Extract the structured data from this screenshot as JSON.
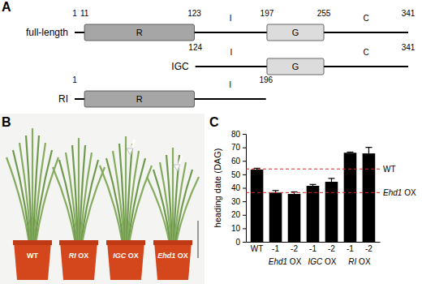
{
  "diagram": {
    "label": "A",
    "constructs": [
      {
        "name": "full-length",
        "start": 1,
        "end": 341,
        "ticks": [
          1,
          11,
          123,
          197,
          255,
          341
        ],
        "regions": [
          {
            "name": "R",
            "start": 11,
            "end": 123
          },
          {
            "name": "I"
          },
          {
            "name": "G",
            "start": 197,
            "end": 255
          },
          {
            "name": "C"
          }
        ]
      },
      {
        "name": "IGC",
        "start": 124,
        "end": 341,
        "ticks": [
          124,
          341
        ],
        "regions": [
          {
            "name": "I"
          },
          {
            "name": "G",
            "start": 197,
            "end": 255
          },
          {
            "name": "C"
          }
        ]
      },
      {
        "name": "RI",
        "start": 1,
        "end": 196,
        "ticks": [
          1,
          196
        ],
        "regions": [
          {
            "name": "R",
            "start": 11,
            "end": 123
          },
          {
            "name": "I"
          }
        ]
      }
    ]
  },
  "photo": {
    "label": "B",
    "pots": [
      "WT",
      "RI OX",
      "IGC OX",
      "Ehd1 OX"
    ]
  },
  "chart_data": {
    "type": "bar",
    "label": "C",
    "y_label": "heading date (DAG)",
    "categories": [
      "WT",
      "-1",
      "-2",
      "-1",
      "-2",
      "-1",
      "-2"
    ],
    "values": [
      53.5,
      36.5,
      35.5,
      41.5,
      44.5,
      66,
      65.5
    ],
    "errors": [
      1,
      1.5,
      1.5,
      1,
      2.5,
      0.5,
      4.5
    ],
    "groups": [
      {
        "label": "Ehd1 OX",
        "span": [
          1,
          2
        ]
      },
      {
        "label": "IGC OX",
        "span": [
          3,
          4
        ]
      },
      {
        "label": "RI OX",
        "span": [
          5,
          6
        ]
      }
    ],
    "reference_lines": [
      {
        "value": 54,
        "label": "WT"
      },
      {
        "value": 36.5,
        "label": "Ehd1 OX"
      }
    ],
    "color": "#000000",
    "ylim": [
      0,
      80
    ],
    "yticks": [
      0,
      10,
      20,
      30,
      40,
      50,
      60,
      70,
      80
    ]
  }
}
